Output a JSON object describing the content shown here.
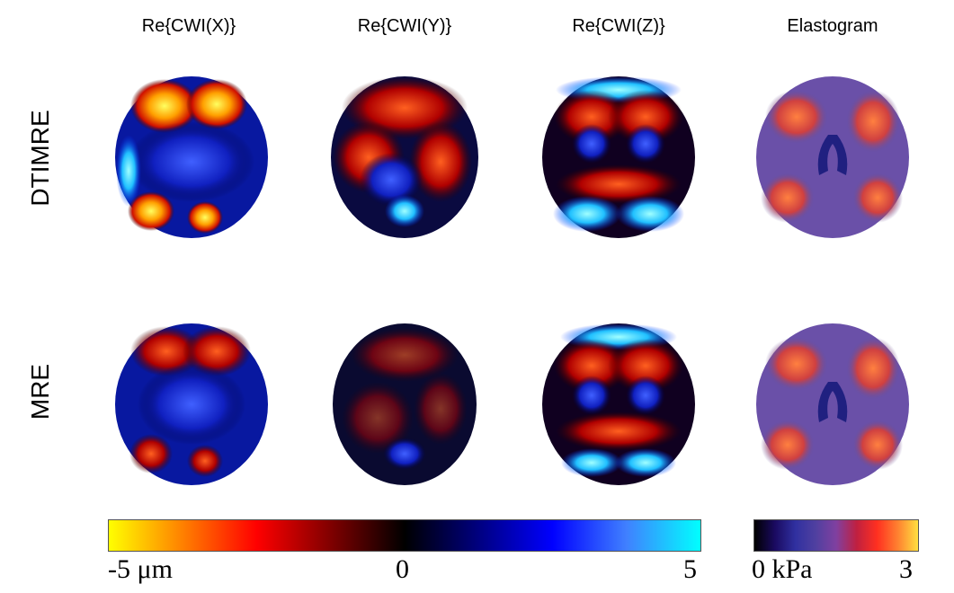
{
  "columns": [
    "Re{CWI(X)}",
    "Re{CWI(Y)}",
    "Re{CWI(Z)}",
    "Elastogram"
  ],
  "rows": [
    "DTIMRE",
    "MRE"
  ],
  "colorbar_wave": {
    "min_label": "-5 μm",
    "mid_label": "0",
    "max_label": "5",
    "colors": [
      "#ffff00",
      "#ff8000",
      "#ff0000",
      "#800000",
      "#000000",
      "#000080",
      "#0000ff",
      "#4080ff",
      "#00ffff"
    ]
  },
  "colorbar_stiffness": {
    "min_label": "0 kPa",
    "max_label": "3",
    "colors": [
      "#000000",
      "#1a0a60",
      "#3030a0",
      "#5040a0",
      "#8040a0",
      "#c02040",
      "#ff3020",
      "#ff8030",
      "#ffe040"
    ]
  }
}
